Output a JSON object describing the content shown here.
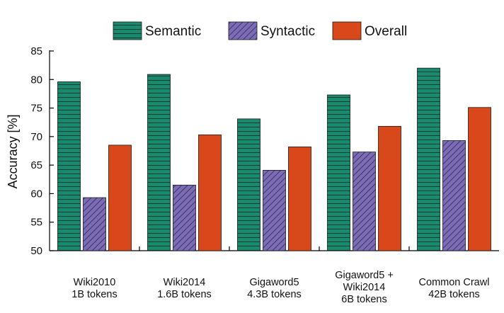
{
  "chart_data": {
    "type": "bar",
    "categories": [
      [
        "Wiki2010",
        "1B tokens"
      ],
      [
        "Wiki2014",
        "1.6B tokens"
      ],
      [
        "Gigaword5",
        "4.3B tokens"
      ],
      [
        "Gigaword5 +",
        "Wiki2014",
        "6B tokens"
      ],
      [
        "Common Crawl",
        "42B tokens"
      ]
    ],
    "series": [
      {
        "name": "Semantic",
        "values": [
          79.6,
          80.9,
          73.1,
          77.3,
          82.0
        ],
        "color": "#1a8a6e",
        "pattern": "horizontal-lines"
      },
      {
        "name": "Syntactic",
        "values": [
          59.3,
          61.5,
          64.1,
          67.3,
          69.3
        ],
        "color": "#7b6cb5",
        "pattern": "diagonal-hatch"
      },
      {
        "name": "Overall",
        "values": [
          68.5,
          70.3,
          68.2,
          71.8,
          75.1
        ],
        "color": "#d9481a",
        "pattern": "solid"
      }
    ],
    "ylabel": "Accuracy [%]",
    "xlabel": "",
    "ylim": [
      50,
      85
    ],
    "yticks": [
      50,
      55,
      60,
      65,
      70,
      75,
      80,
      85
    ],
    "grid": false,
    "legend_position": "top"
  }
}
